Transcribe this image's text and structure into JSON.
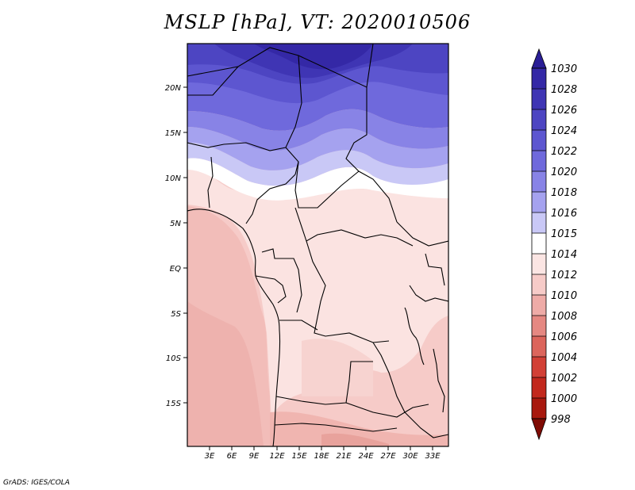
{
  "title": "MSLP [hPa], VT: 2020010506",
  "credit": "GrADS: IGES/COLA",
  "map": {
    "lon_range": [
      0,
      35
    ],
    "lat_range": [
      -20,
      25
    ],
    "lat_ticks": [
      "20N",
      "15N",
      "10N",
      "5N",
      "EQ",
      "5S",
      "10S",
      "15S"
    ],
    "lon_ticks": [
      "3E",
      "6E",
      "9E",
      "12E",
      "15E",
      "18E",
      "21E",
      "24E",
      "27E",
      "30E",
      "33E"
    ]
  },
  "colorbar": {
    "labels": [
      "1030",
      "1028",
      "1026",
      "1024",
      "1022",
      "1020",
      "1018",
      "1016",
      "1015",
      "1014",
      "1012",
      "1010",
      "1008",
      "1006",
      "1004",
      "1002",
      "1000",
      "998"
    ],
    "colors": [
      "#2a1e96",
      "#3428a6",
      "#3f35b4",
      "#4d45c2",
      "#5d56d0",
      "#6f69dc",
      "#8883e6",
      "#a5a2ef",
      "#c9c8f6",
      "#ffffff",
      "#fbe5e3",
      "#f6cbc8",
      "#eeaba7",
      "#e58882",
      "#dc655c",
      "#d24036",
      "#c2281d",
      "#a8180e",
      "#7f0b04"
    ]
  }
}
